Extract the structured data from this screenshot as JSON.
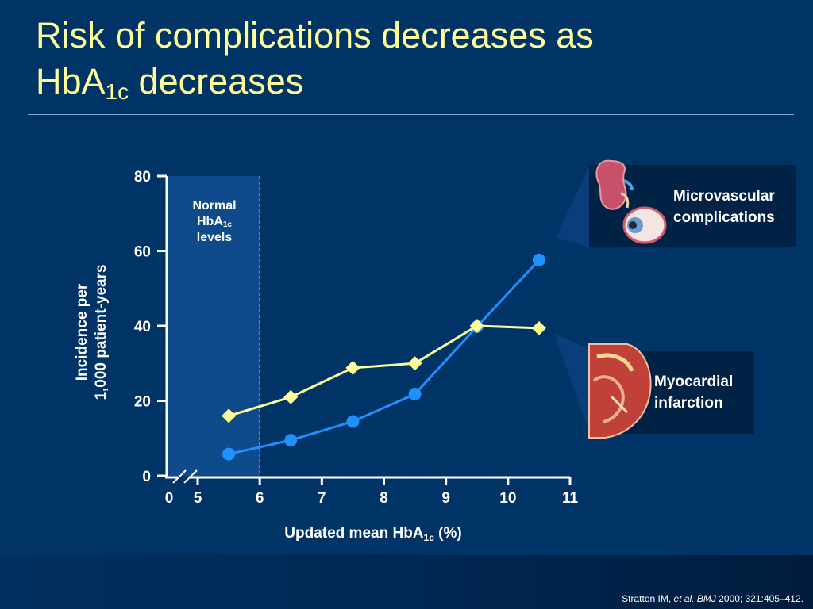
{
  "slide": {
    "title_line1": "Risk of complications decreases as",
    "title_line2_main": "HbA",
    "title_line2_sub": "1c",
    "title_line2_rest": " decreases",
    "citation_author": "Stratton IM,",
    "citation_etal": "et al. BMJ",
    "citation_rest": "2000; 321:405–412."
  },
  "annotations": {
    "normal_line1": "Normal",
    "normal_hba": "HbA",
    "normal_sub": "1c",
    "normal_line3": "levels",
    "micro_line1": "Microvascular",
    "micro_line2": "complications",
    "mi_line1": "Myocardial",
    "mi_line2": "infarction",
    "kidney_icon": "kidney-icon",
    "eye_icon": "eye-icon",
    "heart_icon": "heart-icon"
  },
  "chart_data": {
    "type": "line",
    "xlabel_main": "Updated mean HbA",
    "xlabel_sub": "1c",
    "xlabel_rest": " (%)",
    "ylabel_line1": "Incidence per",
    "ylabel_line2": "1,000 patient-years",
    "xlim": [
      5,
      11
    ],
    "ylim": [
      0,
      80
    ],
    "x_ticks": [
      "0",
      "5",
      "6",
      "7",
      "8",
      "9",
      "10",
      "11"
    ],
    "y_ticks": [
      0,
      20,
      40,
      60,
      80
    ],
    "axis_break": true,
    "shaded_region": {
      "x_end": 6
    },
    "series": [
      {
        "name": "Microvascular complications",
        "color": "#1e90ff",
        "marker": "circle",
        "x": [
          5.5,
          6.5,
          7.5,
          8.5,
          9.5,
          10.5
        ],
        "values": [
          5.8,
          9.5,
          14.5,
          21.8,
          39.8,
          57.6
        ]
      },
      {
        "name": "Myocardial infarction",
        "color": "#ffff99",
        "marker": "diamond",
        "x": [
          5.5,
          6.5,
          7.5,
          8.5,
          9.5,
          10.5
        ],
        "values": [
          16.0,
          21.0,
          28.8,
          30.0,
          40.0,
          39.4
        ]
      }
    ]
  }
}
